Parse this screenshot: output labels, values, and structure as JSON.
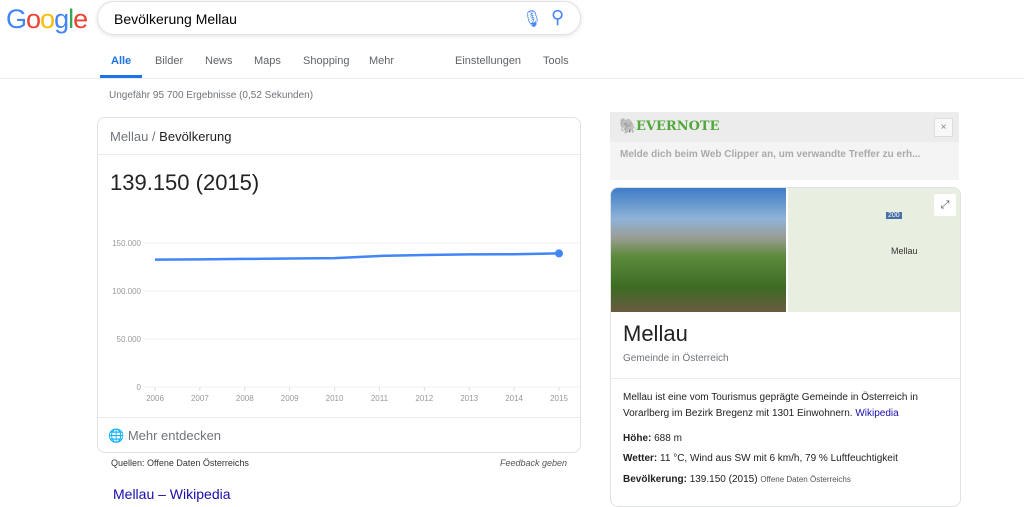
{
  "search": {
    "query": "Bevölkerung Mellau"
  },
  "logo": "Google",
  "tabs": [
    {
      "label": "Alle"
    },
    {
      "label": "Bilder"
    },
    {
      "label": "News"
    },
    {
      "label": "Maps"
    },
    {
      "label": "Shopping"
    },
    {
      "label": "Mehr"
    },
    {
      "label": "Einstellungen"
    },
    {
      "label": "Tools"
    }
  ],
  "result_stats": "Ungefähr 95 700 Ergebnisse (0,52 Sekunden)",
  "card": {
    "breadcrumb_place": "Mellau",
    "breadcrumb_sep": "/",
    "breadcrumb_topic": "Bevölkerung",
    "headline": "139.150 (2015)",
    "more": "Mehr entdecken",
    "sources": "Quellen: Offene Daten Österreichs",
    "feedback": "Feedback geben"
  },
  "chart_data": {
    "type": "line",
    "x": [
      2006,
      2007,
      2008,
      2009,
      2010,
      2011,
      2012,
      2013,
      2014,
      2015
    ],
    "values": [
      132700,
      133000,
      133400,
      133800,
      134300,
      136500,
      137500,
      138200,
      138300,
      139150
    ],
    "yticks": [
      "0",
      "50.000",
      "100.000",
      "150.000"
    ],
    "ylim": [
      0,
      150000
    ],
    "grid": true,
    "color": "#4285f4"
  },
  "first_result": "Mellau – Wikipedia",
  "evernote": {
    "brand": "EVERNOTE",
    "message": "Melde dich beim Web Clipper an, um verwandte Treffer zu erh...",
    "close": "×"
  },
  "knowledge": {
    "title": "Mellau",
    "subtitle": "Gemeinde in Österreich",
    "map_label": "Mellau",
    "map_road": "200",
    "description": "Mellau ist eine vom Tourismus geprägte Gemeinde in Österreich in Vorarlberg im Bezirk Bregenz mit 1301 Einwohnern.",
    "wiki_link": "Wikipedia",
    "facts": [
      {
        "label": "Höhe:",
        "value": "688 m",
        "source": ""
      },
      {
        "label": "Wetter:",
        "value": "11 °C, Wind aus SW mit 6 km/h, 79 % Luftfeuchtigkeit",
        "source": ""
      },
      {
        "label": "Bevölkerung:",
        "value": "139.150 (2015)",
        "source": "Offene Daten Österreichs"
      }
    ]
  }
}
